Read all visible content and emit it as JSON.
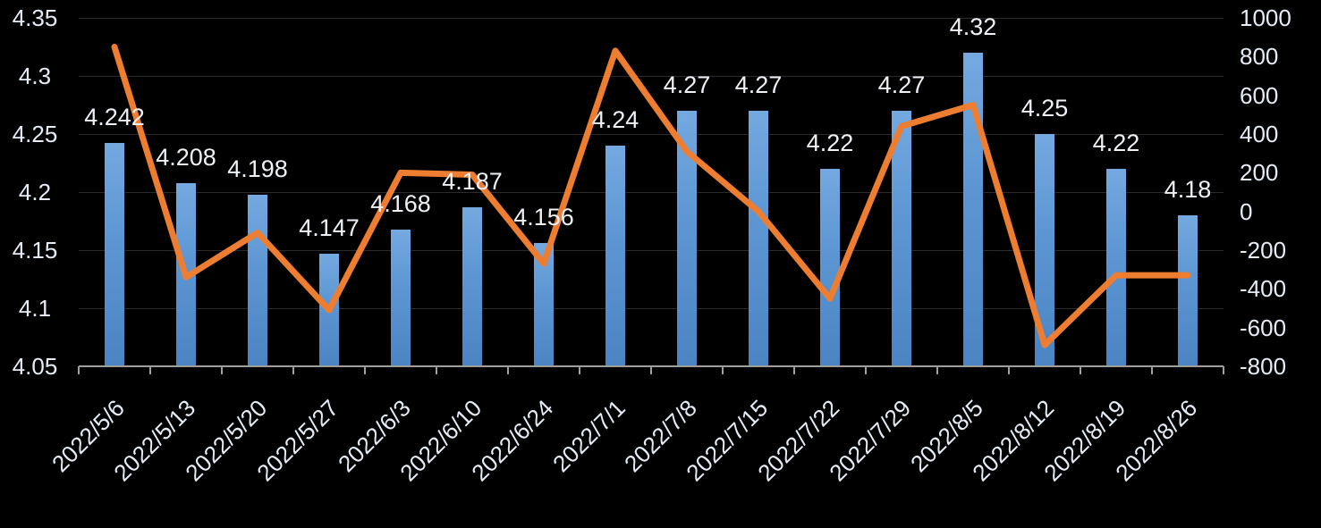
{
  "chart_data": {
    "type": "combo-bar-line-dual-axis",
    "title": "",
    "legend": "none",
    "grid": true,
    "background_color": "#000000",
    "categories": [
      "2022/5/6",
      "2022/5/13",
      "2022/5/20",
      "2022/5/27",
      "2022/6/3",
      "2022/6/10",
      "2022/6/24",
      "2022/7/1",
      "2022/7/8",
      "2022/7/15",
      "2022/7/22",
      "2022/7/29",
      "2022/8/5",
      "2022/8/12",
      "2022/8/19",
      "2022/8/26"
    ],
    "series": [
      {
        "name": "bars",
        "type": "bar",
        "axis": "left",
        "values": [
          4.242,
          4.208,
          4.198,
          4.147,
          4.168,
          4.187,
          4.156,
          4.24,
          4.27,
          4.27,
          4.22,
          4.27,
          4.32,
          4.25,
          4.22,
          4.18
        ],
        "labels": [
          "4.242",
          "4.208",
          "4.198",
          "4.147",
          "4.168",
          "4.187",
          "4.156",
          "4.24",
          "4.27",
          "4.27",
          "4.22",
          "4.27",
          "4.32",
          "4.25",
          "4.22",
          "4.18"
        ],
        "color_top": "#74a9e0",
        "color_bottom": "#4a84c3"
      },
      {
        "name": "line",
        "type": "line",
        "axis": "right",
        "values": [
          850,
          -340,
          -110,
          -510,
          200,
          190,
          -270,
          830,
          310,
          0,
          -450,
          440,
          550,
          -690,
          -330,
          -330
        ],
        "color": "#ed7d31"
      }
    ],
    "left_axis": {
      "min": 4.05,
      "max": 4.35,
      "step": 0.05,
      "ticks": [
        "4.35",
        "4.3",
        "4.25",
        "4.2",
        "4.15",
        "4.1",
        "4.05"
      ]
    },
    "right_axis": {
      "min": -800,
      "max": 1000,
      "step": 200,
      "ticks": [
        "1000",
        "800",
        "600",
        "400",
        "200",
        "0",
        "-200",
        "-400",
        "-600",
        "-800"
      ]
    },
    "colors": {
      "bar_fill_top": "#74a9e0",
      "bar_fill_bottom": "#4a84c3",
      "line_stroke": "#ed7d31",
      "gridline": "#2b2b2b",
      "axis_line": "#9e9e9e",
      "label_text": "#e6ecf5"
    }
  }
}
